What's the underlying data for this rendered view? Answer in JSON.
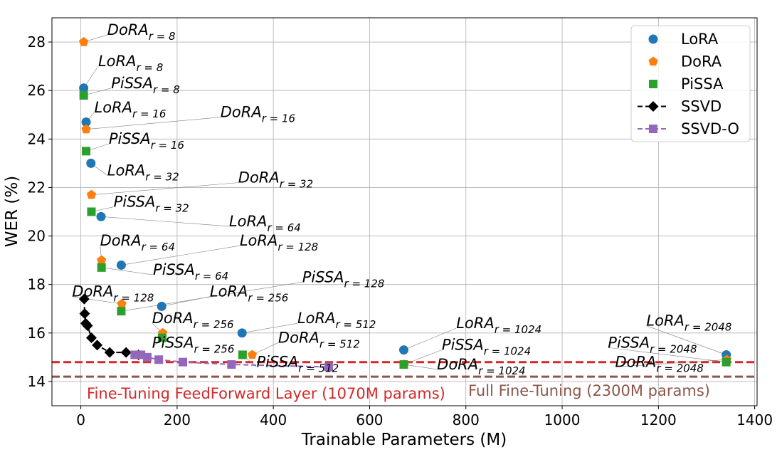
{
  "chart_data": {
    "type": "scatter",
    "xlabel": "Trainable Parameters (M)",
    "ylabel": "WER (%)",
    "xlim": [
      -60,
      1405
    ],
    "ylim": [
      13,
      29
    ],
    "xticks": [
      0,
      200,
      400,
      600,
      800,
      1000,
      1200,
      1400
    ],
    "yticks": [
      14,
      16,
      18,
      20,
      22,
      24,
      26,
      28
    ],
    "grid": true,
    "legend_position": "top-right",
    "colors": {
      "LoRA": "#1f77b4",
      "DoRA": "#ff7f0e",
      "PiSSA": "#2ca02c",
      "SSVD": "#000000",
      "SSVD-O": "#9467bd",
      "ffn_line": "#d62728",
      "full_line": "#8c564b"
    },
    "series": [
      {
        "name": "LoRA",
        "marker": "circle",
        "points": [
          {
            "x": 6,
            "y": 26.1,
            "method": "LoRA",
            "rank": "r=8"
          },
          {
            "x": 11,
            "y": 24.7,
            "method": "LoRA",
            "rank": "r=16"
          },
          {
            "x": 21,
            "y": 23.0,
            "method": "LoRA",
            "rank": "r=32"
          },
          {
            "x": 42,
            "y": 20.8,
            "method": "LoRA",
            "rank": "r=64"
          },
          {
            "x": 84,
            "y": 18.8,
            "method": "LoRA",
            "rank": "r=128"
          },
          {
            "x": 168,
            "y": 17.1,
            "method": "LoRA",
            "rank": "r=256"
          },
          {
            "x": 335,
            "y": 16.0,
            "method": "LoRA",
            "rank": "r=512"
          },
          {
            "x": 671,
            "y": 15.3,
            "method": "LoRA",
            "rank": "r=1024"
          },
          {
            "x": 1341,
            "y": 15.1,
            "method": "LoRA",
            "rank": "r=2048"
          }
        ]
      },
      {
        "name": "DoRA",
        "marker": "pentagon",
        "points": [
          {
            "x": 6,
            "y": 28.0,
            "method": "DoRA",
            "rank": "r=8"
          },
          {
            "x": 11,
            "y": 24.4,
            "method": "DoRA",
            "rank": "r=16"
          },
          {
            "x": 22,
            "y": 21.7,
            "method": "DoRA",
            "rank": "r=32"
          },
          {
            "x": 43,
            "y": 19.0,
            "method": "DoRA",
            "rank": "r=64"
          },
          {
            "x": 85,
            "y": 17.2,
            "method": "DoRA",
            "rank": "r=128"
          },
          {
            "x": 170,
            "y": 16.0,
            "method": "DoRA",
            "rank": "r=256"
          },
          {
            "x": 356,
            "y": 15.1,
            "method": "DoRA",
            "rank": "r=512"
          },
          {
            "x": 672,
            "y": 14.7,
            "method": "DoRA",
            "rank": "r=1024"
          },
          {
            "x": 1342,
            "y": 14.9,
            "method": "DoRA",
            "rank": "r=2048"
          }
        ]
      },
      {
        "name": "PiSSA",
        "marker": "square",
        "points": [
          {
            "x": 6,
            "y": 25.8,
            "method": "PiSSA",
            "rank": "r=8"
          },
          {
            "x": 11,
            "y": 23.5,
            "method": "PiSSA",
            "rank": "r=16"
          },
          {
            "x": 22,
            "y": 21.0,
            "method": "PiSSA",
            "rank": "r=32"
          },
          {
            "x": 43,
            "y": 18.7,
            "method": "PiSSA",
            "rank": "r=64"
          },
          {
            "x": 84,
            "y": 16.9,
            "method": "PiSSA",
            "rank": "r=128"
          },
          {
            "x": 169,
            "y": 15.8,
            "method": "PiSSA",
            "rank": "r=256"
          },
          {
            "x": 336,
            "y": 15.1,
            "method": "PiSSA",
            "rank": "r=512"
          },
          {
            "x": 671,
            "y": 14.7,
            "method": "PiSSA",
            "rank": "r=1024"
          },
          {
            "x": 1341,
            "y": 14.8,
            "method": "PiSSA",
            "rank": "r=2048"
          }
        ]
      },
      {
        "name": "SSVD",
        "marker": "diamond",
        "line": "dashed",
        "points": [
          {
            "x": 7,
            "y": 17.4
          },
          {
            "x": 8,
            "y": 16.8
          },
          {
            "x": 10,
            "y": 16.4
          },
          {
            "x": 14,
            "y": 16.3
          },
          {
            "x": 22,
            "y": 15.8
          },
          {
            "x": 34,
            "y": 15.5
          },
          {
            "x": 60,
            "y": 15.2
          },
          {
            "x": 94,
            "y": 15.2
          },
          {
            "x": 120,
            "y": 15.1
          }
        ]
      },
      {
        "name": "SSVD-O",
        "marker": "square",
        "line": "dashed",
        "points": [
          {
            "x": 112,
            "y": 15.1
          },
          {
            "x": 125,
            "y": 15.1
          },
          {
            "x": 138,
            "y": 15.0
          },
          {
            "x": 162,
            "y": 14.9
          },
          {
            "x": 212,
            "y": 14.8
          },
          {
            "x": 313,
            "y": 14.7
          },
          {
            "x": 515,
            "y": 14.6
          }
        ]
      }
    ],
    "hlines": [
      {
        "y": 14.8,
        "label": "Fine-Tuning FeedForward Layer (1070M params)",
        "style": "dashed"
      },
      {
        "y": 14.2,
        "label": "Full Fine-Tuning (2300M params)",
        "style": "dashed"
      }
    ],
    "annotations": [
      {
        "method": "DoRA",
        "rank": "r=8",
        "point": [
          6,
          28.0
        ],
        "text_at": [
          55,
          28.3
        ]
      },
      {
        "method": "LoRA",
        "rank": "r=8",
        "point": [
          6,
          26.1
        ],
        "text_at": [
          36,
          27.0
        ]
      },
      {
        "method": "PiSSA",
        "rank": "r=8",
        "point": [
          6,
          25.8
        ],
        "text_at": [
          63,
          26.1
        ]
      },
      {
        "method": "LoRA",
        "rank": "r=16",
        "point": [
          11,
          24.7
        ],
        "text_at": [
          28,
          25.1
        ]
      },
      {
        "method": "DoRA",
        "rank": "r=16",
        "point": [
          11,
          24.4
        ],
        "text_at": [
          290,
          24.9
        ]
      },
      {
        "method": "PiSSA",
        "rank": "r=16",
        "point": [
          11,
          23.5
        ],
        "text_at": [
          58,
          23.8
        ]
      },
      {
        "method": "LoRA",
        "rank": "r=32",
        "point": [
          21,
          23.0
        ],
        "text_at": [
          55,
          22.5
        ]
      },
      {
        "method": "DoRA",
        "rank": "r=32",
        "point": [
          22,
          21.7
        ],
        "text_at": [
          327,
          22.2
        ]
      },
      {
        "method": "PiSSA",
        "rank": "r=32",
        "point": [
          22,
          21.0
        ],
        "text_at": [
          68,
          21.2
        ]
      },
      {
        "method": "LoRA",
        "rank": "r=64",
        "point": [
          42,
          20.8
        ],
        "text_at": [
          308,
          20.4
        ]
      },
      {
        "method": "DoRA",
        "rank": "r=64",
        "point": [
          43,
          19.0
        ],
        "text_at": [
          40,
          19.6
        ]
      },
      {
        "method": "LoRA",
        "rank": "r=128",
        "point": [
          84,
          18.8
        ],
        "text_at": [
          330,
          19.6
        ]
      },
      {
        "method": "PiSSA",
        "rank": "r=64",
        "point": [
          43,
          18.7
        ],
        "text_at": [
          150,
          18.4
        ]
      },
      {
        "method": "PiSSA",
        "rank": "r=128",
        "point": [
          84,
          16.9
        ],
        "text_at": [
          460,
          18.1
        ]
      },
      {
        "method": "DoRA",
        "rank": "r=128",
        "point": [
          85,
          17.2
        ],
        "text_at": [
          -18,
          17.5
        ]
      },
      {
        "method": "LoRA",
        "rank": "r=256",
        "point": [
          168,
          17.1
        ],
        "text_at": [
          268,
          17.5
        ]
      },
      {
        "method": "DoRA",
        "rank": "r=256",
        "point": [
          170,
          16.0
        ],
        "text_at": [
          148,
          16.4
        ]
      },
      {
        "method": "LoRA",
        "rank": "r=512",
        "point": [
          335,
          16.0
        ],
        "text_at": [
          450,
          16.4
        ]
      },
      {
        "method": "PiSSA",
        "rank": "r=256",
        "point": [
          169,
          15.8
        ],
        "text_at": [
          148,
          15.4
        ]
      },
      {
        "method": "DoRA",
        "rank": "r=512",
        "point": [
          356,
          15.1
        ],
        "text_at": [
          410,
          15.6
        ]
      },
      {
        "method": "PiSSA",
        "rank": "r=512",
        "point": [
          336,
          15.1
        ],
        "text_at": [
          365,
          14.6
        ]
      },
      {
        "method": "LoRA",
        "rank": "r=1024",
        "point": [
          671,
          15.3
        ],
        "text_at": [
          780,
          16.2
        ]
      },
      {
        "method": "PiSSA",
        "rank": "r=1024",
        "point": [
          671,
          14.7
        ],
        "text_at": [
          750,
          15.3
        ]
      },
      {
        "method": "DoRA",
        "rank": "r=1024",
        "point": [
          672,
          14.7
        ],
        "text_at": [
          740,
          14.5
        ]
      },
      {
        "method": "LoRA",
        "rank": "r=2048",
        "point": [
          1341,
          15.1
        ],
        "text_at": [
          1175,
          16.3
        ]
      },
      {
        "method": "PiSSA",
        "rank": "r=2048",
        "point": [
          1341,
          14.8
        ],
        "text_at": [
          1095,
          15.4
        ]
      },
      {
        "method": "DoRA",
        "rank": "r=2048",
        "point": [
          1342,
          14.9
        ],
        "text_at": [
          1110,
          14.6
        ]
      }
    ]
  }
}
